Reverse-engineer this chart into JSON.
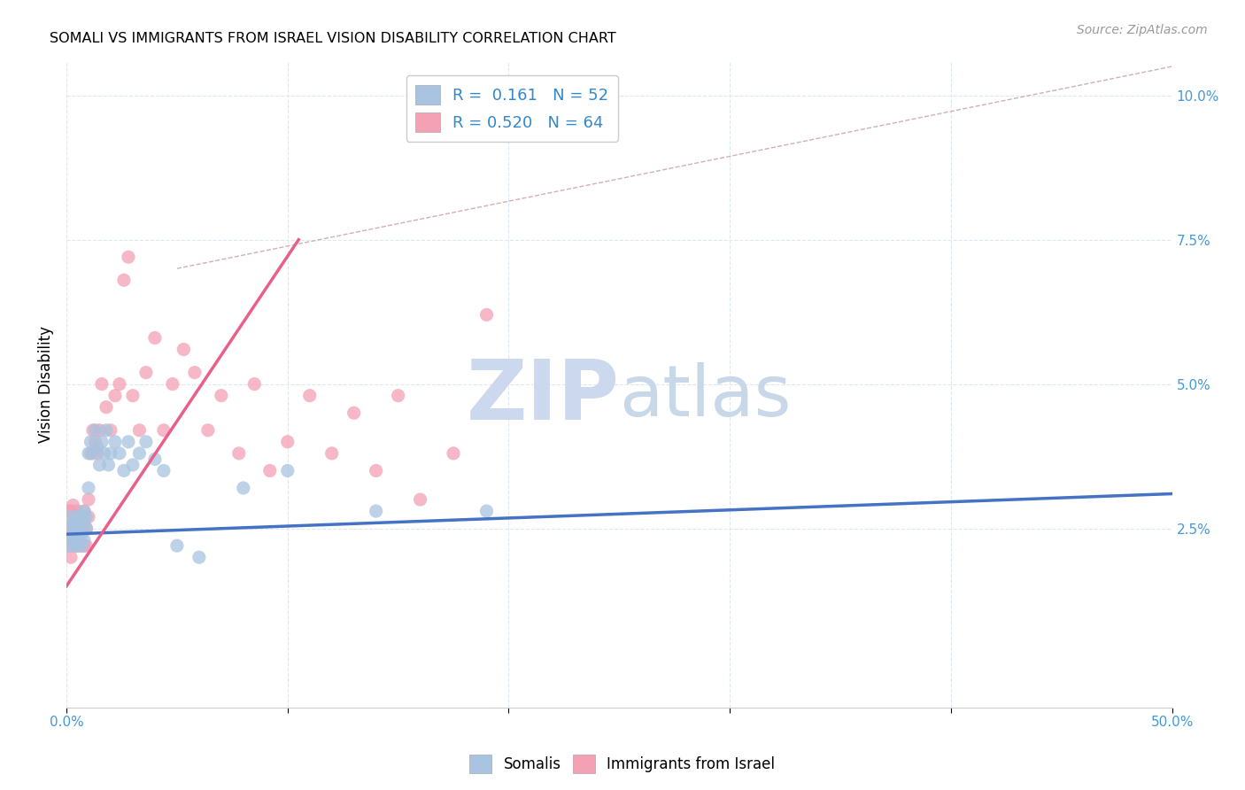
{
  "title": "SOMALI VS IMMIGRANTS FROM ISRAEL VISION DISABILITY CORRELATION CHART",
  "source": "Source: ZipAtlas.com",
  "ylabel": "Vision Disability",
  "ylabel_right_ticks": [
    "10.0%",
    "7.5%",
    "5.0%",
    "2.5%"
  ],
  "ylabel_right_vals": [
    0.1,
    0.075,
    0.05,
    0.025
  ],
  "xmin": 0.0,
  "xmax": 0.5,
  "ymin": -0.006,
  "ymax": 0.106,
  "legend_R_somali": "0.161",
  "legend_N_somali": "52",
  "legend_R_israel": "0.520",
  "legend_N_israel": "64",
  "somali_color": "#a8c4e0",
  "israel_color": "#f4a0b5",
  "somali_line_color": "#4472c4",
  "israel_line_color": "#e8608a",
  "diagonal_color": "#d0b0b8",
  "background_color": "#ffffff",
  "grid_color": "#dde8f0",
  "watermark_zip": "ZIP",
  "watermark_atlas": "atlas",
  "watermark_color_zip": "#ccd8ee",
  "watermark_color_atlas": "#c8d8e8",
  "somali_x": [
    0.001,
    0.001,
    0.002,
    0.002,
    0.003,
    0.003,
    0.003,
    0.004,
    0.004,
    0.004,
    0.005,
    0.005,
    0.005,
    0.005,
    0.006,
    0.006,
    0.006,
    0.007,
    0.007,
    0.007,
    0.008,
    0.008,
    0.008,
    0.009,
    0.009,
    0.01,
    0.01,
    0.011,
    0.012,
    0.013,
    0.014,
    0.015,
    0.016,
    0.017,
    0.018,
    0.019,
    0.02,
    0.022,
    0.024,
    0.026,
    0.028,
    0.03,
    0.033,
    0.036,
    0.04,
    0.044,
    0.05,
    0.06,
    0.08,
    0.1,
    0.14,
    0.19
  ],
  "somali_y": [
    0.025,
    0.022,
    0.027,
    0.023,
    0.026,
    0.022,
    0.024,
    0.025,
    0.023,
    0.026,
    0.027,
    0.024,
    0.022,
    0.025,
    0.026,
    0.023,
    0.025,
    0.027,
    0.024,
    0.022,
    0.026,
    0.028,
    0.023,
    0.025,
    0.027,
    0.038,
    0.032,
    0.04,
    0.038,
    0.042,
    0.039,
    0.036,
    0.04,
    0.038,
    0.042,
    0.036,
    0.038,
    0.04,
    0.038,
    0.035,
    0.04,
    0.036,
    0.038,
    0.04,
    0.037,
    0.035,
    0.022,
    0.02,
    0.032,
    0.035,
    0.028,
    0.028
  ],
  "israel_x": [
    0.001,
    0.001,
    0.001,
    0.002,
    0.002,
    0.002,
    0.002,
    0.003,
    0.003,
    0.003,
    0.003,
    0.004,
    0.004,
    0.004,
    0.005,
    0.005,
    0.005,
    0.006,
    0.006,
    0.006,
    0.007,
    0.007,
    0.007,
    0.008,
    0.008,
    0.008,
    0.009,
    0.009,
    0.01,
    0.01,
    0.011,
    0.012,
    0.013,
    0.014,
    0.015,
    0.016,
    0.018,
    0.02,
    0.022,
    0.024,
    0.026,
    0.028,
    0.03,
    0.033,
    0.036,
    0.04,
    0.044,
    0.048,
    0.053,
    0.058,
    0.064,
    0.07,
    0.078,
    0.085,
    0.092,
    0.1,
    0.11,
    0.12,
    0.13,
    0.14,
    0.15,
    0.16,
    0.175,
    0.19
  ],
  "israel_y": [
    0.022,
    0.025,
    0.028,
    0.02,
    0.023,
    0.025,
    0.028,
    0.022,
    0.024,
    0.026,
    0.029,
    0.022,
    0.025,
    0.027,
    0.022,
    0.025,
    0.028,
    0.022,
    0.025,
    0.027,
    0.022,
    0.025,
    0.027,
    0.022,
    0.025,
    0.028,
    0.022,
    0.025,
    0.03,
    0.027,
    0.038,
    0.042,
    0.04,
    0.038,
    0.042,
    0.05,
    0.046,
    0.042,
    0.048,
    0.05,
    0.068,
    0.072,
    0.048,
    0.042,
    0.052,
    0.058,
    0.042,
    0.05,
    0.056,
    0.052,
    0.042,
    0.048,
    0.038,
    0.05,
    0.035,
    0.04,
    0.048,
    0.038,
    0.045,
    0.035,
    0.048,
    0.03,
    0.038,
    0.062
  ],
  "somali_trendline_x": [
    0.0,
    0.5
  ],
  "somali_trendline_y": [
    0.024,
    0.031
  ],
  "israel_trendline_x": [
    0.0,
    0.105
  ],
  "israel_trendline_y": [
    0.015,
    0.075
  ],
  "diagonal_line_x": [
    0.05,
    0.5
  ],
  "diagonal_line_y": [
    0.07,
    0.105
  ],
  "x_tick_positions": [
    0.0,
    0.1,
    0.2,
    0.3,
    0.4,
    0.5
  ],
  "x_tick_labels_visible": [
    "0.0%",
    "",
    "",
    "",
    "",
    "50.0%"
  ]
}
